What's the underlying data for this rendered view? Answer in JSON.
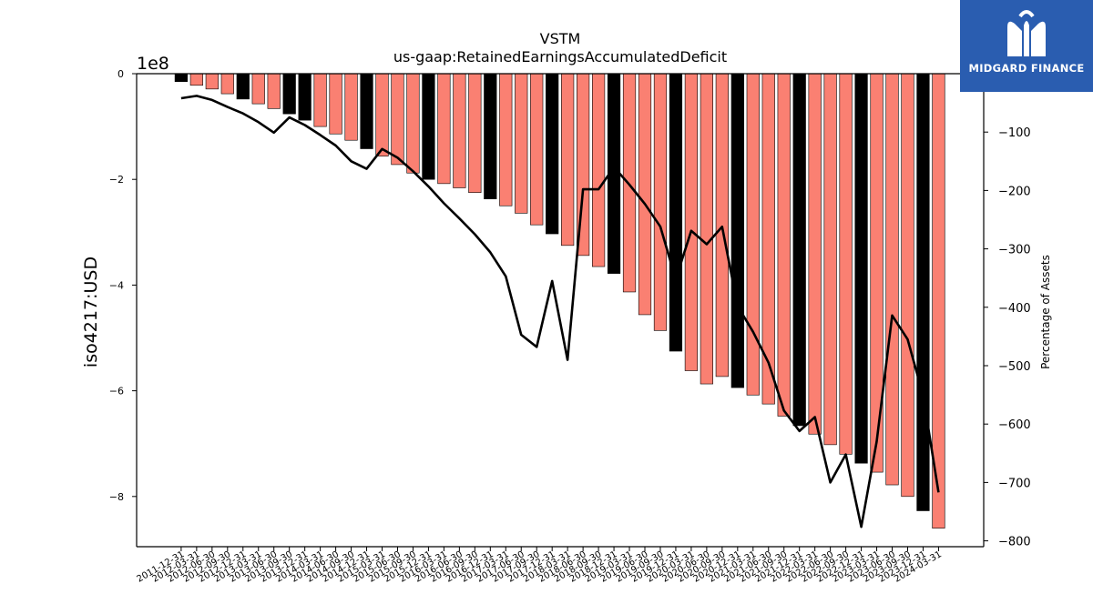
{
  "logo": {
    "text": "MIDGARD FINANCE",
    "icon": "midgard-logo-icon",
    "color": "#2a5db0"
  },
  "chart_data": {
    "type": "bar",
    "title": "VSTM",
    "subtitle": "us-gaap:RetainedEarningsAccumulatedDeficit",
    "ylabel": "iso4217:USD",
    "y_offset_label": "1e8",
    "y2label": "Percentage of Assets",
    "ylim": [
      -8.95,
      0
    ],
    "y_ticks": [
      0,
      -2,
      -4,
      -6,
      -8
    ],
    "y2lim": [
      -810,
      0
    ],
    "y2_ticks": [
      -100,
      -200,
      -300,
      -400,
      -500,
      -600,
      -700,
      -800
    ],
    "colors": {
      "annual": "#000000",
      "quarter": "#fa8072",
      "line": "#000000"
    },
    "categories": [
      "2011-12-31",
      "2012-03-31",
      "2012-06-30",
      "2012-09-30",
      "2012-12-31",
      "2013-03-31",
      "2013-06-30",
      "2013-09-30",
      "2013-12-31",
      "2014-03-31",
      "2014-06-30",
      "2014-09-30",
      "2014-12-31",
      "2015-03-31",
      "2015-06-30",
      "2015-09-30",
      "2015-12-31",
      "2016-03-31",
      "2016-06-30",
      "2016-09-30",
      "2016-12-31",
      "2017-03-31",
      "2017-06-30",
      "2017-09-30",
      "2017-12-31",
      "2018-03-31",
      "2018-06-30",
      "2018-09-30",
      "2018-12-31",
      "2019-03-31",
      "2019-06-30",
      "2019-09-30",
      "2019-12-31",
      "2020-03-31",
      "2020-06-30",
      "2020-09-30",
      "2020-12-31",
      "2021-03-31",
      "2021-06-30",
      "2021-09-30",
      "2021-12-31",
      "2022-03-31",
      "2022-06-30",
      "2022-09-30",
      "2022-12-31",
      "2023-03-31",
      "2023-06-30",
      "2023-09-30",
      "2023-12-31",
      "2024-03-31"
    ],
    "tick_labels": [
      "2011-12-31",
      "2012-03-31",
      "2012-06-30",
      "2012-09-30",
      "2012-12-31",
      "2013-03-31",
      "2013-06-30",
      "2013-09-30",
      "2013-12-31",
      "2014-03-31",
      "2014-06-30",
      "2014-09-30",
      "2014-12-31",
      "2015-03-31",
      "2015-06-30",
      "2015-09-30",
      "2015-12-31",
      "2016-03-31",
      "2016-06-30",
      "2016-09-30",
      "2016-12-31",
      "2017-03-31",
      "2017-06-30",
      "2017-09-30",
      "2017-12-31",
      "2018-03-31",
      "2018-06-30",
      "2018-09-30",
      "2018-12-31",
      "2019-03-31",
      "2019-06-30",
      "2019-09-30",
      "2019-12-31",
      "2020-03-31",
      "2020-06-30",
      "2020-09-30",
      "2020-12-31",
      "2021-03-31",
      "2021-06-30",
      "2021-09-30",
      "2021-12-31",
      "2022-03-31",
      "2022-06-30",
      "2022-09-30",
      "2022-12-31",
      "2023-03-31",
      "2023-06-30",
      "2023-09-30",
      "2023-12-31",
      "2024-03-31"
    ],
    "series": [
      {
        "kind": "bar",
        "values": [
          -0.15,
          -0.22,
          -0.29,
          -0.38,
          -0.48,
          -0.57,
          -0.66,
          -0.76,
          -0.88,
          -1.0,
          -1.14,
          -1.26,
          -1.42,
          -1.56,
          -1.72,
          -1.88,
          -2.0,
          -2.08,
          -2.16,
          -2.25,
          -2.37,
          -2.5,
          -2.64,
          -2.86,
          -3.03,
          -3.25,
          -3.44,
          -3.65,
          -3.78,
          -4.13,
          -4.56,
          -4.86,
          -5.25,
          -5.62,
          -5.87,
          -5.73,
          -5.94,
          -6.08,
          -6.25,
          -6.48,
          -6.66,
          -6.82,
          -7.02,
          -7.2,
          -7.37,
          -7.54,
          -7.78,
          -8.0,
          -8.27,
          -8.6
        ],
        "annual": [
          true,
          false,
          false,
          false,
          true,
          false,
          false,
          true,
          true,
          false,
          false,
          false,
          true,
          false,
          false,
          false,
          true,
          false,
          false,
          false,
          true,
          false,
          false,
          false,
          true,
          false,
          false,
          false,
          true,
          false,
          false,
          false,
          true,
          false,
          false,
          false,
          true,
          false,
          false,
          false,
          true,
          false,
          false,
          false,
          true,
          false,
          false,
          false,
          true,
          false
        ]
      },
      {
        "kind": "line",
        "name": "Percentage of Assets",
        "values": [
          -42,
          -38,
          -45,
          -57,
          -68,
          -83,
          -101,
          -75,
          -88,
          -105,
          -123,
          -150,
          -163,
          -129,
          -144,
          -167,
          -193,
          -222,
          -248,
          -275,
          -306,
          -347,
          -447,
          -468,
          -355,
          -490,
          -198,
          -198,
          -160,
          -190,
          -223,
          -262,
          -352,
          -269,
          -292,
          -262,
          -398,
          -442,
          -495,
          -577,
          -612,
          -588,
          -700,
          -652,
          -776,
          -630,
          -414,
          -455,
          -551,
          -717
        ]
      }
    ]
  }
}
